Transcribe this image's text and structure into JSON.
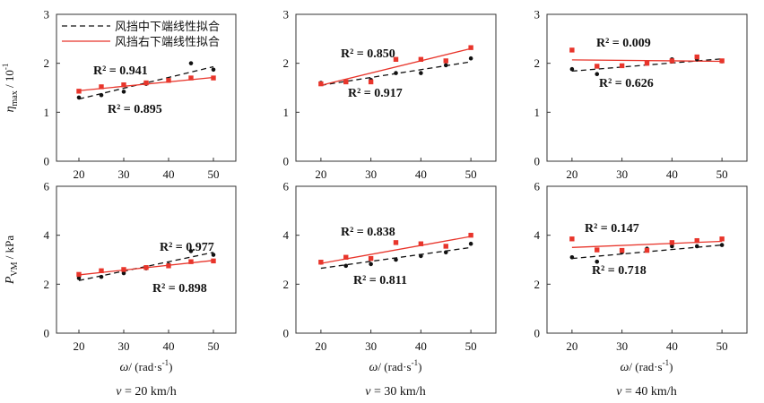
{
  "colors": {
    "middle": "#111111",
    "right": "#e8352b",
    "axis": "#333333"
  },
  "legend": {
    "middle": "风挡中下端线性拟合",
    "right": "风挡右下端线性拟合"
  },
  "ylabels": {
    "top": {
      "symbol": "η",
      "sub": "max",
      "unit": " / 10",
      "exp": "-1"
    },
    "bottom": {
      "symbol": "P",
      "sub": "VM",
      "unit": " / kPa"
    }
  },
  "xlabel": {
    "symbol": "ω",
    "unit": "/ (rad·s",
    "exp": "-1",
    "close": ")"
  },
  "columns": [
    {
      "caption": {
        "var": "v",
        "text": " =  20 km/h"
      }
    },
    {
      "caption": {
        "var": "v",
        "text": " = 30 km/h"
      }
    },
    {
      "caption": {
        "var": "v",
        "text": " = 40 km/h"
      }
    }
  ],
  "chart_data": [
    {
      "type": "scatter",
      "row": 0,
      "col": 0,
      "x": [
        20,
        25,
        30,
        35,
        40,
        45,
        50
      ],
      "xlim": [
        15,
        55
      ],
      "xticks": [
        20,
        30,
        40,
        50
      ],
      "ylim": [
        0,
        3
      ],
      "yticks": [
        0,
        1,
        2,
        3
      ],
      "series": [
        {
          "name": "风挡中下端线性拟合",
          "marker": "circle",
          "color": "#111111",
          "values": [
            1.3,
            1.35,
            1.42,
            1.58,
            1.65,
            2.0,
            1.87
          ],
          "fit": [
            1.27,
            1.93
          ],
          "fit_style": "dashed",
          "r2": "R² = 0.941"
        },
        {
          "name": "风挡右下端线性拟合",
          "marker": "square",
          "color": "#e8352b",
          "values": [
            1.43,
            1.52,
            1.56,
            1.6,
            1.65,
            1.7,
            1.7
          ],
          "fit": [
            1.44,
            1.71
          ],
          "fit_style": "solid",
          "r2": "R² = 0.895"
        }
      ]
    },
    {
      "type": "scatter",
      "row": 0,
      "col": 1,
      "x": [
        20,
        25,
        30,
        35,
        40,
        45,
        50
      ],
      "xlim": [
        15,
        55
      ],
      "xticks": [
        20,
        30,
        40,
        50
      ],
      "ylim": [
        0,
        3
      ],
      "yticks": [
        0,
        1,
        2,
        3
      ],
      "series": [
        {
          "name": "风挡中下端线性拟合",
          "marker": "circle",
          "color": "#111111",
          "values": [
            1.6,
            1.62,
            1.66,
            1.8,
            1.8,
            1.96,
            2.1
          ],
          "fit": [
            1.55,
            2.03
          ],
          "fit_style": "dashed",
          "r2": "R² = 0.917"
        },
        {
          "name": "风挡右下端线性拟合",
          "marker": "square",
          "color": "#e8352b",
          "values": [
            1.58,
            1.62,
            1.62,
            2.08,
            2.08,
            2.05,
            2.32
          ],
          "fit": [
            1.55,
            2.3
          ],
          "fit_style": "solid",
          "r2": "R² = 0.850"
        }
      ]
    },
    {
      "type": "scatter",
      "row": 0,
      "col": 2,
      "x": [
        20,
        25,
        30,
        35,
        40,
        45,
        50
      ],
      "xlim": [
        15,
        55
      ],
      "xticks": [
        20,
        30,
        40,
        50
      ],
      "ylim": [
        0,
        3
      ],
      "yticks": [
        0,
        1,
        2,
        3
      ],
      "series": [
        {
          "name": "风挡中下端线性拟合",
          "marker": "circle",
          "color": "#111111",
          "values": [
            1.88,
            1.78,
            1.95,
            2.0,
            2.08,
            2.08,
            2.04
          ],
          "fit": [
            1.84,
            2.09
          ],
          "fit_style": "dashed",
          "r2": "R² = 0.626"
        },
        {
          "name": "风挡右下端线性拟合",
          "marker": "square",
          "color": "#e8352b",
          "values": [
            2.27,
            1.94,
            1.95,
            2.0,
            2.05,
            2.13,
            2.05
          ],
          "fit": [
            2.07,
            2.04
          ],
          "fit_style": "solid",
          "r2": "R² = 0.009"
        }
      ]
    },
    {
      "type": "scatter",
      "row": 1,
      "col": 0,
      "x": [
        20,
        25,
        30,
        35,
        40,
        45,
        50
      ],
      "xlim": [
        15,
        55
      ],
      "xticks": [
        20,
        30,
        40,
        50
      ],
      "ylim": [
        0,
        6
      ],
      "yticks": [
        0,
        2,
        4,
        6
      ],
      "series": [
        {
          "name": "风挡中下端线性拟合",
          "marker": "circle",
          "color": "#111111",
          "values": [
            2.25,
            2.3,
            2.45,
            2.65,
            2.8,
            3.35,
            3.2
          ],
          "fit": [
            2.15,
            3.3
          ],
          "fit_style": "dashed",
          "r2": "R² = 0.977"
        },
        {
          "name": "风挡右下端线性拟合",
          "marker": "square",
          "color": "#e8352b",
          "values": [
            2.4,
            2.55,
            2.6,
            2.68,
            2.75,
            2.92,
            2.95
          ],
          "fit": [
            2.38,
            2.97
          ],
          "fit_style": "solid",
          "r2": "R² = 0.898"
        }
      ]
    },
    {
      "type": "scatter",
      "row": 1,
      "col": 1,
      "x": [
        20,
        25,
        30,
        35,
        40,
        45,
        50
      ],
      "xlim": [
        15,
        55
      ],
      "xticks": [
        20,
        30,
        40,
        50
      ],
      "ylim": [
        0,
        6
      ],
      "yticks": [
        0,
        2,
        4,
        6
      ],
      "series": [
        {
          "name": "风挡中下端线性拟合",
          "marker": "circle",
          "color": "#111111",
          "values": [
            2.88,
            2.75,
            2.82,
            3.0,
            3.15,
            3.3,
            3.65
          ],
          "fit": [
            2.65,
            3.5
          ],
          "fit_style": "dashed",
          "r2": "R² = 0.811"
        },
        {
          "name": "风挡右下端线性拟合",
          "marker": "square",
          "color": "#e8352b",
          "values": [
            2.9,
            3.1,
            3.05,
            3.7,
            3.65,
            3.55,
            4.0
          ],
          "fit": [
            2.85,
            3.95
          ],
          "fit_style": "solid",
          "r2": "R² = 0.838"
        }
      ]
    },
    {
      "type": "scatter",
      "row": 1,
      "col": 2,
      "x": [
        20,
        25,
        30,
        35,
        40,
        45,
        50
      ],
      "xlim": [
        15,
        55
      ],
      "xticks": [
        20,
        30,
        40,
        50
      ],
      "ylim": [
        0,
        6
      ],
      "yticks": [
        0,
        2,
        4,
        6
      ],
      "series": [
        {
          "name": "风挡中下端线性拟合",
          "marker": "circle",
          "color": "#111111",
          "values": [
            3.1,
            2.92,
            3.3,
            3.45,
            3.55,
            3.55,
            3.6
          ],
          "fit": [
            3.05,
            3.6
          ],
          "fit_style": "dashed",
          "r2": "R² = 0.718"
        },
        {
          "name": "风挡右下端线性拟合",
          "marker": "square",
          "color": "#e8352b",
          "values": [
            3.85,
            3.4,
            3.38,
            3.38,
            3.7,
            3.78,
            3.85
          ],
          "fit": [
            3.5,
            3.75
          ],
          "fit_style": "solid",
          "r2": "R² = 0.147"
        }
      ]
    }
  ]
}
